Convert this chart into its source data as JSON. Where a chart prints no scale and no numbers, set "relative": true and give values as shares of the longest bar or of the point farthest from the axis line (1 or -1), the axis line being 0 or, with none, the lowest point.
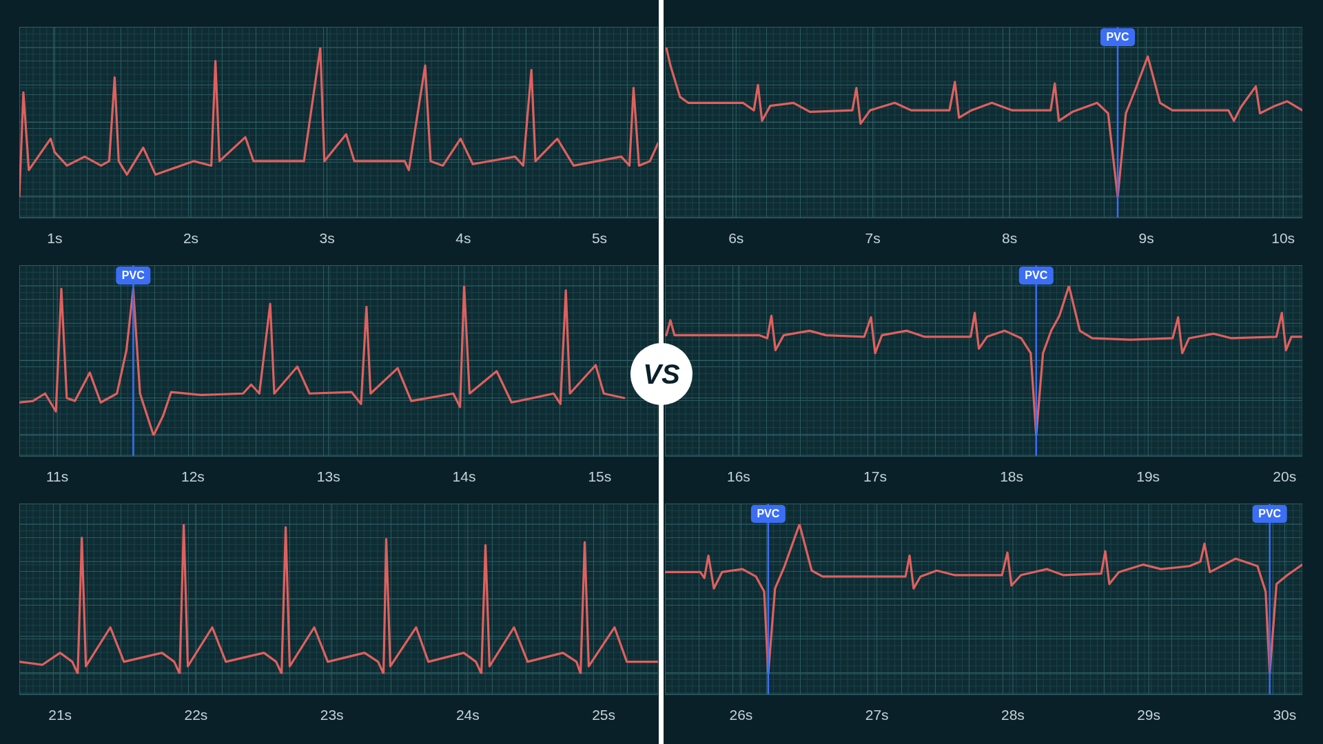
{
  "chart_data": [
    {
      "type": "line",
      "relative": true,
      "grid": true,
      "xlim": [
        0.74,
        5.43
      ],
      "xticks": [
        {
          "value": 1,
          "label": "1s"
        },
        {
          "value": 2,
          "label": "2s"
        },
        {
          "value": 3,
          "label": "3s"
        },
        {
          "value": 4,
          "label": "4s"
        },
        {
          "value": 5,
          "label": "5s"
        }
      ],
      "series": [
        {
          "color": "#e0605e",
          "x": [
            0.74,
            0.77,
            0.81,
            0.97,
            1.0,
            1.09,
            1.22,
            1.34,
            1.4,
            1.44,
            1.47,
            1.53,
            1.65,
            1.74,
            2.02,
            2.15,
            2.18,
            2.21,
            2.4,
            2.46,
            2.83,
            2.95,
            2.98,
            3.14,
            3.2,
            3.57,
            3.6,
            3.72,
            3.76,
            3.85,
            3.98,
            4.07,
            4.38,
            4.44,
            4.5,
            4.53,
            4.69,
            4.81,
            5.16,
            5.22,
            5.25,
            5.29,
            5.37,
            5.43
          ],
          "values": [
            0,
            0.7,
            0.18,
            0.39,
            0.3,
            0.21,
            0.27,
            0.21,
            0.24,
            0.8,
            0.24,
            0.15,
            0.33,
            0.15,
            0.24,
            0.21,
            0.91,
            0.24,
            0.4,
            0.24,
            0.24,
            1.0,
            0.24,
            0.42,
            0.24,
            0.24,
            0.18,
            0.88,
            0.24,
            0.21,
            0.39,
            0.22,
            0.27,
            0.21,
            0.85,
            0.24,
            0.39,
            0.21,
            0.27,
            0.21,
            0.73,
            0.21,
            0.24,
            0.36
          ]
        }
      ]
    },
    {
      "type": "line",
      "relative": true,
      "grid": true,
      "xlim": [
        5.48,
        10.14
      ],
      "xticks": [
        {
          "value": 6,
          "label": "6s"
        },
        {
          "value": 7,
          "label": "7s"
        },
        {
          "value": 8,
          "label": "8s"
        },
        {
          "value": 9,
          "label": "9s"
        },
        {
          "value": 10,
          "label": "10s"
        }
      ],
      "ref_lines": [
        {
          "axis": "x",
          "value": 8.79,
          "label": "PVC",
          "color": "#3b6ef5"
        }
      ],
      "series": [
        {
          "color": "#e0605e",
          "x": [
            5.49,
            5.52,
            5.59,
            5.65,
            6.05,
            6.13,
            6.16,
            6.19,
            6.25,
            6.42,
            6.54,
            6.85,
            6.88,
            6.91,
            6.98,
            7.16,
            7.28,
            7.56,
            7.6,
            7.63,
            7.72,
            7.87,
            8.02,
            8.3,
            8.33,
            8.36,
            8.46,
            8.64,
            8.72,
            8.79,
            8.85,
            8.92,
            9.01,
            9.1,
            9.19,
            9.6,
            9.64,
            9.69,
            9.8,
            9.83,
            9.94,
            10.03,
            10.14
          ],
          "values": [
            1.0,
            0.88,
            0.67,
            0.63,
            0.63,
            0.58,
            0.75,
            0.51,
            0.61,
            0.63,
            0.57,
            0.58,
            0.73,
            0.49,
            0.58,
            0.63,
            0.58,
            0.58,
            0.77,
            0.53,
            0.58,
            0.63,
            0.58,
            0.58,
            0.76,
            0.51,
            0.57,
            0.63,
            0.56,
            0,
            0.56,
            0.72,
            0.94,
            0.63,
            0.58,
            0.58,
            0.51,
            0.6,
            0.74,
            0.56,
            0.61,
            0.64,
            0.58
          ]
        }
      ]
    },
    {
      "type": "line",
      "relative": true,
      "grid": true,
      "xlim": [
        10.72,
        15.43
      ],
      "xticks": [
        {
          "value": 11,
          "label": "11s"
        },
        {
          "value": 12,
          "label": "12s"
        },
        {
          "value": 13,
          "label": "13s"
        },
        {
          "value": 14,
          "label": "14s"
        },
        {
          "value": 15,
          "label": "15s"
        }
      ],
      "ref_lines": [
        {
          "axis": "x",
          "value": 11.56,
          "label": "PVC",
          "color": "#3b6ef5"
        }
      ],
      "annotations": [
        "VS"
      ],
      "series": [
        {
          "color": "#e0605e",
          "x": [
            10.72,
            10.82,
            10.91,
            10.99,
            11.03,
            11.07,
            11.13,
            11.24,
            11.32,
            11.44,
            11.51,
            11.56,
            11.61,
            11.71,
            11.78,
            11.84,
            12.06,
            12.37,
            12.43,
            12.49,
            12.57,
            12.6,
            12.77,
            12.86,
            13.17,
            13.24,
            13.28,
            13.31,
            13.51,
            13.61,
            13.92,
            13.97,
            14.0,
            14.04,
            14.24,
            14.35,
            14.66,
            14.71,
            14.75,
            14.78,
            14.97,
            15.03,
            15.18
          ],
          "values": [
            0.22,
            0.23,
            0.28,
            0.16,
            0.98,
            0.25,
            0.23,
            0.42,
            0.22,
            0.28,
            0.57,
            0.98,
            0.28,
            0,
            0.13,
            0.29,
            0.27,
            0.28,
            0.34,
            0.28,
            0.88,
            0.28,
            0.46,
            0.28,
            0.29,
            0.21,
            0.86,
            0.28,
            0.45,
            0.23,
            0.28,
            0.19,
            1.0,
            0.28,
            0.43,
            0.22,
            0.28,
            0.21,
            0.97,
            0.28,
            0.47,
            0.28,
            0.25
          ]
        }
      ]
    },
    {
      "type": "line",
      "relative": true,
      "grid": true,
      "xlim": [
        15.46,
        20.13
      ],
      "xticks": [
        {
          "value": 16,
          "label": "16s"
        },
        {
          "value": 17,
          "label": "17s"
        },
        {
          "value": 18,
          "label": "18s"
        },
        {
          "value": 19,
          "label": "19s"
        },
        {
          "value": 20,
          "label": "20s"
        }
      ],
      "ref_lines": [
        {
          "axis": "x",
          "value": 18.18,
          "label": "PVC",
          "color": "#3b6ef5"
        }
      ],
      "series": [
        {
          "color": "#e0605e",
          "x": [
            15.47,
            15.5,
            15.53,
            15.9,
            16.15,
            16.21,
            16.24,
            16.27,
            16.33,
            16.52,
            16.64,
            16.92,
            16.97,
            17.0,
            17.05,
            17.23,
            17.36,
            17.7,
            17.73,
            17.76,
            17.82,
            17.95,
            18.07,
            18.14,
            18.18,
            18.23,
            18.29,
            18.35,
            18.42,
            18.5,
            18.59,
            18.87,
            19.18,
            19.22,
            19.25,
            19.3,
            19.48,
            19.61,
            19.94,
            19.98,
            20.01,
            20.05,
            20.13
          ],
          "values": [
            0.67,
            0.77,
            0.67,
            0.67,
            0.67,
            0.65,
            0.8,
            0.57,
            0.67,
            0.7,
            0.67,
            0.66,
            0.79,
            0.55,
            0.67,
            0.7,
            0.66,
            0.66,
            0.82,
            0.58,
            0.66,
            0.7,
            0.65,
            0.55,
            0,
            0.55,
            0.7,
            0.8,
            1.0,
            0.7,
            0.65,
            0.64,
            0.65,
            0.79,
            0.55,
            0.65,
            0.68,
            0.65,
            0.66,
            0.82,
            0.57,
            0.66,
            0.66
          ]
        }
      ]
    },
    {
      "type": "line",
      "relative": true,
      "grid": true,
      "xlim": [
        20.7,
        25.4
      ],
      "xticks": [
        {
          "value": 21,
          "label": "21s"
        },
        {
          "value": 22,
          "label": "22s"
        },
        {
          "value": 23,
          "label": "23s"
        },
        {
          "value": 24,
          "label": "24s"
        },
        {
          "value": 25,
          "label": "25s"
        }
      ],
      "series": [
        {
          "color": "#e0605e",
          "x": [
            20.7,
            20.87,
            21.0,
            21.09,
            21.13,
            21.16,
            21.19,
            21.37,
            21.47,
            21.75,
            21.84,
            21.88,
            21.91,
            21.94,
            22.12,
            22.22,
            22.5,
            22.59,
            22.63,
            22.66,
            22.69,
            22.87,
            22.97,
            23.24,
            23.34,
            23.38,
            23.4,
            23.43,
            23.62,
            23.71,
            23.97,
            24.06,
            24.1,
            24.13,
            24.16,
            24.34,
            24.44,
            24.7,
            24.8,
            24.83,
            24.86,
            24.89,
            25.08,
            25.17,
            25.4
          ],
          "values": [
            0.08,
            0.06,
            0.14,
            0.08,
            0,
            0.91,
            0.05,
            0.31,
            0.08,
            0.14,
            0.08,
            0,
            1.0,
            0.05,
            0.31,
            0.08,
            0.14,
            0.08,
            0,
            0.98,
            0.05,
            0.31,
            0.08,
            0.14,
            0.08,
            0,
            0.9,
            0.05,
            0.31,
            0.08,
            0.14,
            0.08,
            0,
            0.86,
            0.05,
            0.31,
            0.08,
            0.14,
            0.08,
            0,
            0.88,
            0.05,
            0.31,
            0.08,
            0.08
          ]
        }
      ]
    },
    {
      "type": "line",
      "relative": true,
      "grid": true,
      "xlim": [
        25.44,
        30.13
      ],
      "xticks": [
        {
          "value": 26,
          "label": "26s"
        },
        {
          "value": 27,
          "label": "27s"
        },
        {
          "value": 28,
          "label": "28s"
        },
        {
          "value": 29,
          "label": "29s"
        },
        {
          "value": 30,
          "label": "30s"
        }
      ],
      "ref_lines": [
        {
          "axis": "x",
          "value": 26.2,
          "label": "PVC",
          "color": "#3b6ef5"
        },
        {
          "axis": "x",
          "value": 29.89,
          "label": "PVC",
          "color": "#3b6ef5"
        }
      ],
      "series": [
        {
          "color": "#e0605e",
          "x": [
            25.44,
            25.7,
            25.73,
            25.76,
            25.8,
            25.86,
            26.01,
            26.11,
            26.17,
            26.2,
            26.25,
            26.32,
            26.43,
            26.52,
            26.6,
            27.07,
            27.21,
            27.24,
            27.27,
            27.32,
            27.44,
            27.57,
            27.92,
            27.96,
            27.99,
            28.06,
            28.25,
            28.37,
            28.65,
            28.68,
            28.71,
            28.78,
            28.96,
            29.09,
            29.3,
            29.38,
            29.41,
            29.45,
            29.64,
            29.8,
            29.86,
            29.89,
            29.94,
            30.02,
            30.13
          ],
          "values": [
            0.68,
            0.68,
            0.64,
            0.79,
            0.57,
            0.68,
            0.7,
            0.65,
            0.55,
            0,
            0.57,
            0.72,
            1.0,
            0.69,
            0.65,
            0.65,
            0.65,
            0.79,
            0.57,
            0.65,
            0.69,
            0.66,
            0.66,
            0.81,
            0.59,
            0.66,
            0.7,
            0.66,
            0.67,
            0.82,
            0.6,
            0.68,
            0.73,
            0.7,
            0.72,
            0.75,
            0.87,
            0.68,
            0.77,
            0.72,
            0.55,
            0,
            0.6,
            0.66,
            0.73
          ]
        }
      ]
    }
  ]
}
